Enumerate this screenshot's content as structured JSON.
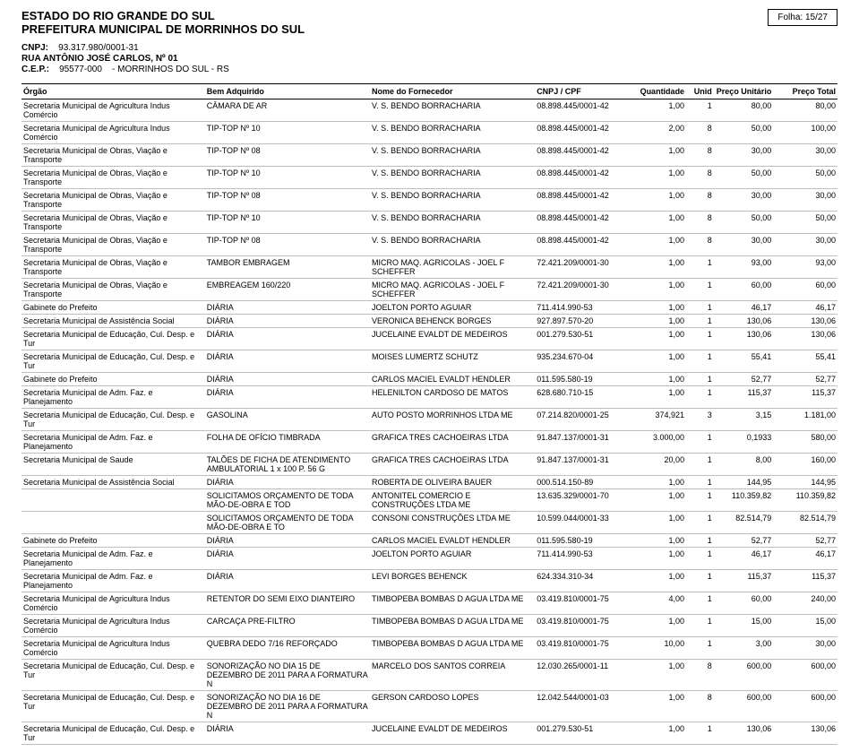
{
  "header": {
    "folha_label": "Folha:",
    "folha_value": "15/27",
    "state": "ESTADO DO RIO GRANDE DO SUL",
    "city": "PREFEITURA MUNICIPAL DE MORRINHOS DO SUL",
    "cnpj_label": "CNPJ:",
    "cnpj_value": "93.317.980/0001-31",
    "address": "RUA ANTÔNIO JOSÉ CARLOS, Nº 01",
    "cep_label": "C.E.P.:",
    "cep_value": "95577-000",
    "cep_city": "- MORRINHOS DO SUL - RS"
  },
  "columns": {
    "orgao": "Órgão",
    "bem": "Bem Adquirido",
    "fornecedor": "Nome do Fornecedor",
    "cnpj": "CNPJ / CPF",
    "qtd": "Quantidade",
    "unid": "Unid",
    "punit": "Preço Unitário",
    "ptot": "Preço Total"
  },
  "rows": [
    {
      "orgao": "Secretaria Municipal de Agricultura Indus Comércio",
      "bem": "CÂMARA DE AR",
      "forn": "V. S. BENDO BORRACHARIA",
      "cnpj": "08.898.445/0001-42",
      "qtd": "1,00",
      "unid": "1",
      "punit": "80,00",
      "ptot": "80,00"
    },
    {
      "orgao": "Secretaria Municipal de Agricultura Indus Comércio",
      "bem": "TIP-TOP Nº 10",
      "forn": "V. S. BENDO BORRACHARIA",
      "cnpj": "08.898.445/0001-42",
      "qtd": "2,00",
      "unid": "8",
      "punit": "50,00",
      "ptot": "100,00"
    },
    {
      "orgao": "Secretaria Municipal de Obras, Viação e Transporte",
      "bem": "TIP-TOP Nº 08",
      "forn": "V. S. BENDO BORRACHARIA",
      "cnpj": "08.898.445/0001-42",
      "qtd": "1,00",
      "unid": "8",
      "punit": "30,00",
      "ptot": "30,00"
    },
    {
      "orgao": "Secretaria Municipal de Obras, Viação e Transporte",
      "bem": "TIP-TOP Nº 10",
      "forn": "V. S. BENDO BORRACHARIA",
      "cnpj": "08.898.445/0001-42",
      "qtd": "1,00",
      "unid": "8",
      "punit": "50,00",
      "ptot": "50,00"
    },
    {
      "orgao": "Secretaria Municipal de Obras, Viação e Transporte",
      "bem": "TIP-TOP Nº 08",
      "forn": "V. S. BENDO BORRACHARIA",
      "cnpj": "08.898.445/0001-42",
      "qtd": "1,00",
      "unid": "8",
      "punit": "30,00",
      "ptot": "30,00"
    },
    {
      "orgao": "Secretaria Municipal de Obras, Viação e Transporte",
      "bem": "TIP-TOP Nº 10",
      "forn": "V. S. BENDO BORRACHARIA",
      "cnpj": "08.898.445/0001-42",
      "qtd": "1,00",
      "unid": "8",
      "punit": "50,00",
      "ptot": "50,00"
    },
    {
      "orgao": "Secretaria Municipal de Obras, Viação e Transporte",
      "bem": "TIP-TOP Nº 08",
      "forn": "V. S. BENDO BORRACHARIA",
      "cnpj": "08.898.445/0001-42",
      "qtd": "1,00",
      "unid": "8",
      "punit": "30,00",
      "ptot": "30,00"
    },
    {
      "orgao": "Secretaria Municipal de Obras, Viação e Transporte",
      "bem": "TAMBOR EMBRAGEM",
      "forn": "MICRO MAQ. AGRICOLAS - JOEL F SCHEFFER",
      "cnpj": "72.421.209/0001-30",
      "qtd": "1,00",
      "unid": "1",
      "punit": "93,00",
      "ptot": "93,00"
    },
    {
      "orgao": "Secretaria Municipal de Obras, Viação e Transporte",
      "bem": "EMBREAGEM 160/220",
      "forn": "MICRO MAQ. AGRICOLAS - JOEL F SCHEFFER",
      "cnpj": "72.421.209/0001-30",
      "qtd": "1,00",
      "unid": "1",
      "punit": "60,00",
      "ptot": "60,00"
    },
    {
      "orgao": "Gabinete do Prefeito",
      "bem": "DIÁRIA",
      "forn": "JOELTON PORTO AGUIAR",
      "cnpj": "711.414.990-53",
      "qtd": "1,00",
      "unid": "1",
      "punit": "46,17",
      "ptot": "46,17"
    },
    {
      "orgao": "Secretaria Municipal de Assistência Social",
      "bem": "DIÁRIA",
      "forn": "VERONICA BEHENCK BORGES",
      "cnpj": "927.897.570-20",
      "qtd": "1,00",
      "unid": "1",
      "punit": "130,06",
      "ptot": "130,06"
    },
    {
      "orgao": "Secretaria Municipal de Educação, Cul. Desp. e Tur",
      "bem": "DIÁRIA",
      "forn": "JUCELAINE EVALDT DE MEDEIROS",
      "cnpj": "001.279.530-51",
      "qtd": "1,00",
      "unid": "1",
      "punit": "130,06",
      "ptot": "130,06"
    },
    {
      "orgao": "Secretaria Municipal de Educação, Cul. Desp. e Tur",
      "bem": "DIÁRIA",
      "forn": "MOISES LUMERTZ SCHUTZ",
      "cnpj": "935.234.670-04",
      "qtd": "1,00",
      "unid": "1",
      "punit": "55,41",
      "ptot": "55,41"
    },
    {
      "orgao": "Gabinete do Prefeito",
      "bem": "DIÁRIA",
      "forn": "CARLOS MACIEL EVALDT HENDLER",
      "cnpj": "011.595.580-19",
      "qtd": "1,00",
      "unid": "1",
      "punit": "52,77",
      "ptot": "52,77"
    },
    {
      "orgao": "Secretaria Municipal de Adm. Faz. e Planejamento",
      "bem": "DIÁRIA",
      "forn": "HELENILTON CARDOSO DE MATOS",
      "cnpj": "628.680.710-15",
      "qtd": "1,00",
      "unid": "1",
      "punit": "115,37",
      "ptot": "115,37"
    },
    {
      "orgao": "Secretaria Municipal de Educação, Cul. Desp. e Tur",
      "bem": "GASOLINA",
      "forn": "AUTO POSTO MORRINHOS LTDA ME",
      "cnpj": "07.214.820/0001-25",
      "qtd": "374,921",
      "unid": "3",
      "punit": "3,15",
      "ptot": "1.181,00"
    },
    {
      "orgao": "Secretaria Municipal de Adm. Faz. e Planejamento",
      "bem": "FOLHA DE OFÍCIO TIMBRADA",
      "forn": "GRAFICA TRES CACHOEIRAS LTDA",
      "cnpj": "91.847.137/0001-31",
      "qtd": "3.000,00",
      "unid": "1",
      "punit": "0,1933",
      "ptot": "580,00"
    },
    {
      "orgao": "Secretaria Municipal de Saude",
      "bem": "TALÕES DE FICHA DE ATENDIMENTO AMBULATORIAL 1 x 100 P. 56 G",
      "forn": "GRAFICA TRES CACHOEIRAS LTDA",
      "cnpj": "91.847.137/0001-31",
      "qtd": "20,00",
      "unid": "1",
      "punit": "8,00",
      "ptot": "160,00"
    },
    {
      "orgao": "Secretaria Municipal de Assistência Social",
      "bem": "DIÁRIA",
      "forn": "ROBERTA DE OLIVEIRA BAUER",
      "cnpj": "000.514.150-89",
      "qtd": "1,00",
      "unid": "1",
      "punit": "144,95",
      "ptot": "144,95"
    },
    {
      "orgao": "",
      "bem": "SOLICITAMOS ORÇAMENTO DE TODA MÃO-DE-OBRA E TOD",
      "forn": "ANTONITEL COMERCIO E CONSTRUÇÕES LTDA ME",
      "cnpj": "13.635.329/0001-70",
      "qtd": "1,00",
      "unid": "1",
      "punit": "110.359,82",
      "ptot": "110.359,82"
    },
    {
      "orgao": "",
      "bem": "SOLICITAMOS ORÇAMENTO DE TODA MÃO-DE-OBRA E TO",
      "forn": "CONSONI CONSTRUÇÕES LTDA ME",
      "cnpj": "10.599.044/0001-33",
      "qtd": "1,00",
      "unid": "1",
      "punit": "82.514,79",
      "ptot": "82.514,79"
    },
    {
      "orgao": "Gabinete do Prefeito",
      "bem": "DIÁRIA",
      "forn": "CARLOS MACIEL EVALDT HENDLER",
      "cnpj": "011.595.580-19",
      "qtd": "1,00",
      "unid": "1",
      "punit": "52,77",
      "ptot": "52,77"
    },
    {
      "orgao": "Secretaria Municipal de Adm. Faz. e Planejamento",
      "bem": "DIÁRIA",
      "forn": "JOELTON PORTO AGUIAR",
      "cnpj": "711.414.990-53",
      "qtd": "1,00",
      "unid": "1",
      "punit": "46,17",
      "ptot": "46,17"
    },
    {
      "orgao": "Secretaria Municipal de Adm. Faz. e Planejamento",
      "bem": "DIÁRIA",
      "forn": "LEVI BORGES BEHENCK",
      "cnpj": "624.334.310-34",
      "qtd": "1,00",
      "unid": "1",
      "punit": "115,37",
      "ptot": "115,37"
    },
    {
      "orgao": "Secretaria Municipal de Agricultura Indus Comércio",
      "bem": "RETENTOR DO SEMI EIXO DIANTEIRO",
      "forn": "TIMBOPEBA BOMBAS D AGUA LTDA ME",
      "cnpj": "03.419.810/0001-75",
      "qtd": "4,00",
      "unid": "1",
      "punit": "60,00",
      "ptot": "240,00"
    },
    {
      "orgao": "Secretaria Municipal de Agricultura Indus Comércio",
      "bem": "CARCAÇA PRE-FILTRO",
      "forn": "TIMBOPEBA BOMBAS D AGUA LTDA ME",
      "cnpj": "03.419.810/0001-75",
      "qtd": "1,00",
      "unid": "1",
      "punit": "15,00",
      "ptot": "15,00"
    },
    {
      "orgao": "Secretaria Municipal de Agricultura Indus Comércio",
      "bem": "QUEBRA DEDO 7/16 REFORÇADO",
      "forn": "TIMBOPEBA BOMBAS D AGUA LTDA ME",
      "cnpj": "03.419.810/0001-75",
      "qtd": "10,00",
      "unid": "1",
      "punit": "3,00",
      "ptot": "30,00"
    },
    {
      "orgao": "Secretaria Municipal de Educação, Cul. Desp. e Tur",
      "bem": "SONORIZAÇÃO NO DIA 15 DE DEZEMBRO DE 2011 PARA A FORMATURA N",
      "forn": "MARCELO DOS SANTOS CORREIA",
      "cnpj": "12.030.265/0001-11",
      "qtd": "1,00",
      "unid": "8",
      "punit": "600,00",
      "ptot": "600,00"
    },
    {
      "orgao": "Secretaria Municipal de Educação, Cul. Desp. e Tur",
      "bem": "SONORIZAÇÃO NO DIA 16 DE DEZEMBRO DE 2011 PARA A FORMATURA N",
      "forn": "GERSON CARDOSO LOPES",
      "cnpj": "12.042.544/0001-03",
      "qtd": "1,00",
      "unid": "8",
      "punit": "600,00",
      "ptot": "600,00"
    },
    {
      "orgao": "Secretaria Municipal de Educação, Cul. Desp. e Tur",
      "bem": "DIÁRIA",
      "forn": "JUCELAINE EVALDT DE MEDEIROS",
      "cnpj": "001.279.530-51",
      "qtd": "1,00",
      "unid": "1",
      "punit": "130,06",
      "ptot": "130,06"
    }
  ]
}
